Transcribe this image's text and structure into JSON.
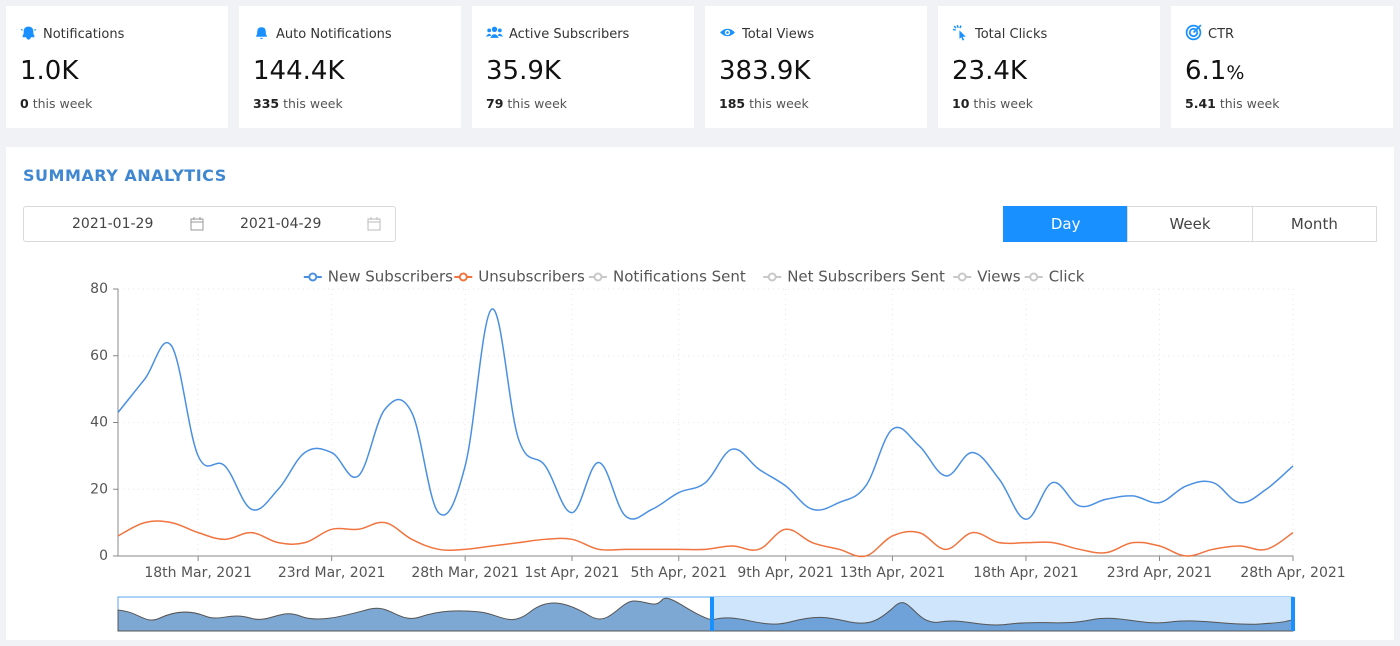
{
  "cards": [
    {
      "icon": "bell-ring",
      "title": "Notifications",
      "value": "1.0K",
      "week_count": "0",
      "week_text": "this week"
    },
    {
      "icon": "bell",
      "title": "Auto Notifications",
      "value": "144.4K",
      "week_count": "335",
      "week_text": "this week"
    },
    {
      "icon": "users",
      "title": "Active Subscribers",
      "value": "35.9K",
      "week_count": "79",
      "week_text": "this week"
    },
    {
      "icon": "eye",
      "title": "Total Views",
      "value": "383.9K",
      "week_count": "185",
      "week_text": "this week"
    },
    {
      "icon": "click",
      "title": "Total Clicks",
      "value": "23.4K",
      "week_count": "10",
      "week_text": "this week"
    },
    {
      "icon": "target",
      "title": "CTR",
      "value": "6.1",
      "unit": "%",
      "week_count": "5.41",
      "week_text": "this week"
    }
  ],
  "panel": {
    "title": "SUMMARY ANALYTICS",
    "date_start": "2021-01-29",
    "date_end": "2021-04-29",
    "periods": [
      "Day",
      "Week",
      "Month"
    ],
    "active_period": "Day"
  },
  "chart_data": {
    "type": "line",
    "categories": [
      null,
      null,
      null,
      "18th Mar, 2021",
      null,
      null,
      null,
      null,
      "23rd Mar, 2021",
      null,
      null,
      null,
      null,
      "28th Mar, 2021",
      null,
      null,
      null,
      "1st Apr, 2021",
      null,
      null,
      null,
      "5th Apr, 2021",
      null,
      null,
      null,
      "9th Apr, 2021",
      null,
      null,
      null,
      "13th Apr, 2021",
      null,
      null,
      null,
      null,
      "18th Apr, 2021",
      null,
      null,
      null,
      null,
      "23rd Apr, 2021",
      null,
      null,
      null,
      null,
      "28th Apr, 2021"
    ],
    "series": [
      {
        "name": "New Subscribers",
        "color": "#4a90e2",
        "visible": true,
        "values": [
          43,
          53,
          63,
          30,
          27,
          14,
          20,
          31,
          31,
          24,
          44,
          43,
          13,
          27,
          74,
          35,
          27,
          13,
          28,
          12,
          14,
          19,
          22,
          32,
          26,
          21,
          14,
          16,
          21,
          38,
          33,
          24,
          31,
          23,
          11,
          22,
          15,
          17,
          18,
          16,
          21,
          22,
          16,
          20,
          27
        ]
      },
      {
        "name": "Unsubscribers",
        "color": "#f0743f",
        "visible": true,
        "values": [
          6,
          10,
          10,
          7,
          5,
          7,
          4,
          4,
          8,
          8,
          10,
          5,
          2,
          2,
          3,
          4,
          5,
          5,
          2,
          2,
          2,
          2,
          2,
          3,
          2,
          8,
          4,
          2,
          0,
          6,
          7,
          2,
          7,
          4,
          4,
          4,
          2,
          1,
          4,
          3,
          0,
          2,
          3,
          2,
          7
        ]
      },
      {
        "name": "Notifications Sent",
        "color": "#c8c8c8",
        "visible": false
      },
      {
        "name": "Net Subscribers Sent",
        "color": "#c8c8c8",
        "visible": false
      },
      {
        "name": "Views",
        "color": "#c8c8c8",
        "visible": false
      },
      {
        "name": "Click",
        "color": "#c8c8c8",
        "visible": false
      }
    ],
    "ylim": [
      0,
      80
    ],
    "yticks": [
      0,
      20,
      40,
      60,
      80
    ],
    "grid": true
  }
}
